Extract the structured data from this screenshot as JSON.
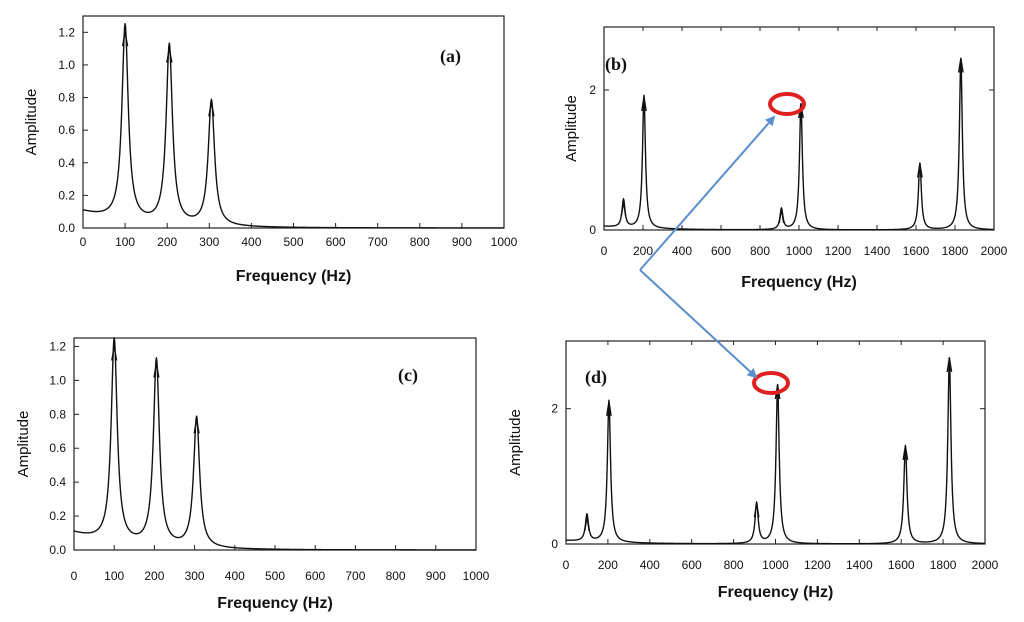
{
  "chart_data": [
    {
      "id": "a",
      "type": "line",
      "panel_label": "(a)",
      "xlabel": "Frequency (Hz)",
      "ylabel": "Amplitude",
      "xlim": [
        0,
        1000
      ],
      "ylim": [
        0,
        1.3
      ],
      "xticks": [
        0,
        100,
        200,
        300,
        400,
        500,
        600,
        700,
        800,
        900,
        1000
      ],
      "yticks": [
        0.0,
        0.2,
        0.4,
        0.6,
        0.8,
        1.0,
        1.2
      ],
      "ytick_labels": [
        "0.0",
        "0.2",
        "0.4",
        "0.6",
        "0.8",
        "1.0",
        "1.2"
      ],
      "peaks": [
        {
          "x": 100,
          "y": 1.2
        },
        {
          "x": 205,
          "y": 1.1
        },
        {
          "x": 305,
          "y": 0.77
        }
      ],
      "baseline_start": 0.1
    },
    {
      "id": "b",
      "type": "line",
      "panel_label": "(b)",
      "xlabel": "Frequency (Hz)",
      "ylabel": "Amplitude",
      "xlim": [
        0,
        2000
      ],
      "ylim": [
        0,
        2.9
      ],
      "xticks": [
        0,
        200,
        400,
        600,
        800,
        1000,
        1200,
        1400,
        1600,
        1800,
        2000
      ],
      "yticks": [
        0,
        2
      ],
      "ytick_labels": [
        "0",
        "2"
      ],
      "peaks": [
        {
          "x": 100,
          "y": 0.4
        },
        {
          "x": 205,
          "y": 1.9
        },
        {
          "x": 910,
          "y": 0.3
        },
        {
          "x": 1010,
          "y": 1.8
        },
        {
          "x": 1620,
          "y": 0.95
        },
        {
          "x": 1830,
          "y": 2.45
        }
      ],
      "baseline_start": 0.05,
      "highlight_x": 1010
    },
    {
      "id": "c",
      "type": "line",
      "panel_label": "(c)",
      "xlabel": "Frequency (Hz)",
      "ylabel": "Amplitude",
      "xlim": [
        0,
        1000
      ],
      "ylim": [
        0,
        1.25
      ],
      "xticks": [
        0,
        100,
        200,
        300,
        400,
        500,
        600,
        700,
        800,
        900,
        1000
      ],
      "yticks": [
        0.0,
        0.2,
        0.4,
        0.6,
        0.8,
        1.0,
        1.2
      ],
      "ytick_labels": [
        "0.0",
        "0.2",
        "0.4",
        "0.6",
        "0.8",
        "1.0",
        "1.2"
      ],
      "peaks": [
        {
          "x": 100,
          "y": 1.2
        },
        {
          "x": 205,
          "y": 1.1
        },
        {
          "x": 305,
          "y": 0.77
        }
      ],
      "baseline_start": 0.1
    },
    {
      "id": "d",
      "type": "line",
      "panel_label": "(d)",
      "xlabel": "Frequency (Hz)",
      "ylabel": "Amplitude",
      "xlim": [
        0,
        2000
      ],
      "ylim": [
        0,
        3.0
      ],
      "xticks": [
        0,
        200,
        400,
        600,
        800,
        1000,
        1200,
        1400,
        1600,
        1800,
        2000
      ],
      "yticks": [
        0,
        2
      ],
      "ytick_labels": [
        "0",
        "2"
      ],
      "peaks": [
        {
          "x": 100,
          "y": 0.4
        },
        {
          "x": 205,
          "y": 2.1
        },
        {
          "x": 910,
          "y": 0.6
        },
        {
          "x": 1010,
          "y": 2.35
        },
        {
          "x": 1620,
          "y": 1.45
        },
        {
          "x": 1830,
          "y": 2.75
        }
      ],
      "baseline_start": 0.05,
      "highlight_x": 1010
    }
  ],
  "colors": {
    "curve": "#111111",
    "highlight_circle": "#e0201e",
    "arrow": "#5a8fce"
  }
}
